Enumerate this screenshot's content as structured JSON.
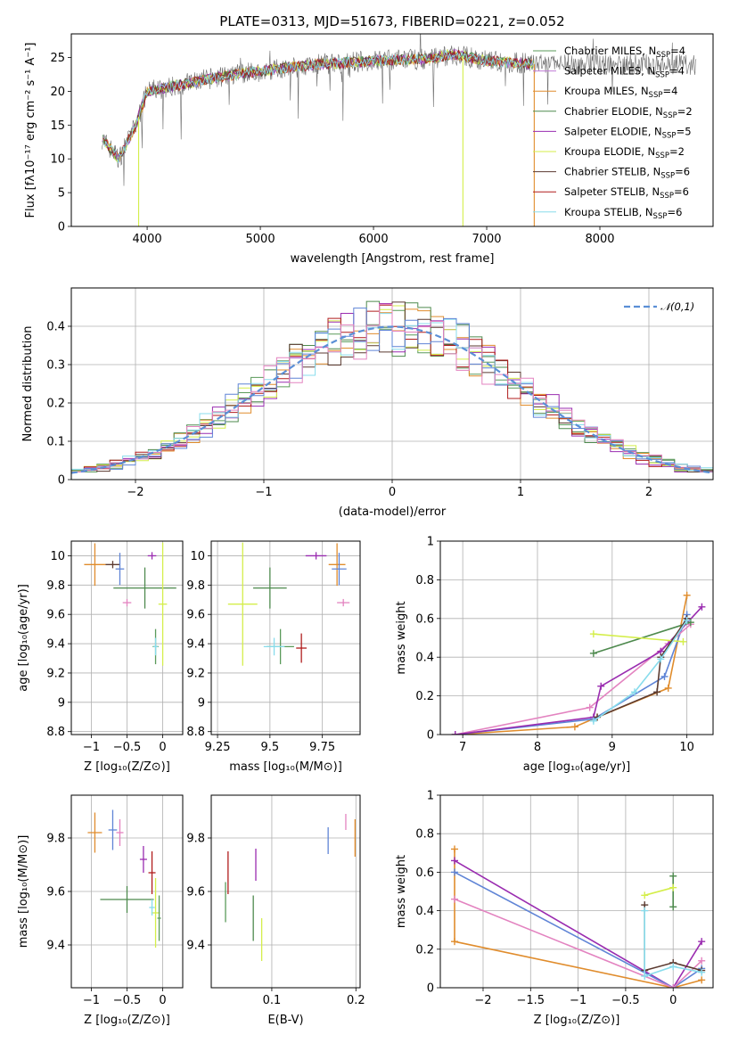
{
  "page": {
    "title": "PLATE=0313, MJD=51673, FIBERID=0221, z=0.052"
  },
  "colors": {
    "Chabrier MILES": "#5a9a5a",
    "Salpeter MILES": "#c07bd6",
    "Kroupa MILES": "#e08c2c",
    "Chabrier ELODIE": "#4e8a4e",
    "Salpeter ELODIE": "#9a2cb0",
    "Kroupa ELODIE": "#d4ee4a",
    "Chabrier STELIB": "#5b3a30",
    "Salpeter STELIB": "#b01c1c",
    "Kroupa STELIB": "#88dcec",
    "extra_blue": "#5f84d6",
    "extra_pink": "#e383c0",
    "normal": "#5b8fd6"
  },
  "chart_data": [
    {
      "type": "line",
      "xlabel": "wavelength [Angstrom, rest frame]",
      "ylabel": "Flux [fλ10⁻¹⁷ erg cm⁻² s⁻¹ A⁻¹]",
      "xlim": [
        3330,
        9000
      ],
      "ylim": [
        0,
        28.5
      ],
      "xticks": [
        4000,
        5000,
        6000,
        7000,
        8000
      ],
      "yticks": [
        0,
        5,
        10,
        15,
        20,
        25
      ],
      "legend_position": "right",
      "legend": [
        {
          "name": "Chabrier MILES",
          "nssp": "4"
        },
        {
          "name": "Salpeter MILES",
          "nssp": "4"
        },
        {
          "name": "Kroupa MILES",
          "nssp": "4"
        },
        {
          "name": "Chabrier ELODIE",
          "nssp": "2"
        },
        {
          "name": "Salpeter ELODIE",
          "nssp": "5"
        },
        {
          "name": "Kroupa ELODIE",
          "nssp": "2"
        },
        {
          "name": "Chabrier STELIB",
          "nssp": "6"
        },
        {
          "name": "Salpeter STELIB",
          "nssp": "6"
        },
        {
          "name": "Kroupa STELIB",
          "nssp": "6"
        }
      ],
      "continuum": {
        "x": [
          3600,
          3750,
          3900,
          4000,
          4300,
          4600,
          5000,
          5500,
          6000,
          6500,
          6700,
          7000,
          7400
        ],
        "y": [
          13,
          10,
          15,
          20,
          21,
          22,
          23,
          24,
          24.5,
          24.8,
          25.5,
          24.5,
          24
        ]
      },
      "spikes_down": [
        {
          "x": 3925,
          "y": 0
        },
        {
          "x": 6790,
          "y": 0
        },
        {
          "x": 7420,
          "y": 0
        }
      ]
    },
    {
      "type": "bar",
      "subtype": "step-histogram",
      "xlabel": "(data-model)/error",
      "ylabel": "Normed distribution",
      "xlim": [
        -2.5,
        2.5
      ],
      "ylim": [
        0,
        0.5
      ],
      "xticks": [
        -2,
        -1,
        0,
        1,
        2
      ],
      "yticks": [
        0.0,
        0.1,
        0.2,
        0.3,
        0.4
      ],
      "legend": "𝒩(0,1)",
      "reference_curve": {
        "mean": 0,
        "sigma": 1
      },
      "bin_width": 0.1
    },
    {
      "type": "scatter",
      "subtype": "error-crosses",
      "xlabel": "Z [log₁₀(Z/Z⊙)]",
      "ylabel": "age  [log₁₀(age/yr)]",
      "xlim": [
        -1.28,
        0.28
      ],
      "ylim": [
        8.78,
        10.1
      ],
      "xticks": [
        -1,
        -0.5,
        0
      ],
      "yticks": [
        8.8,
        9.0,
        9.2,
        9.4,
        9.6,
        9.8,
        10.0
      ],
      "points": [
        {
          "series": "Kroupa MILES",
          "x": -0.95,
          "y": 9.94,
          "dx": 0.3,
          "dy": 0.29
        },
        {
          "series": "Chabrier STELIB",
          "x": -0.7,
          "y": 9.94,
          "dx": 0.2,
          "dy": 0.05
        },
        {
          "series": "extra_blue",
          "x": -0.6,
          "y": 9.91,
          "dx": 0.12,
          "dy": 0.22
        },
        {
          "series": "extra_pink",
          "x": -0.5,
          "y": 9.68,
          "dx": 0.12,
          "dy": 0.05
        },
        {
          "series": "Salpeter ELODIE",
          "x": -0.15,
          "y": 10.0,
          "dx": 0.12,
          "dy": 0.05
        },
        {
          "series": "Chabrier ELODIE",
          "x": -0.25,
          "y": 9.78,
          "dx": 0.88,
          "dy": 0.28
        },
        {
          "series": "Kroupa ELODIE",
          "x": 0.0,
          "y": 9.67,
          "dx": 0.12,
          "dy": 0.84
        },
        {
          "series": "Chabrier MILES",
          "x": -0.1,
          "y": 9.38,
          "dx": 0.08,
          "dy": 0.24
        },
        {
          "series": "Kroupa STELIB",
          "x": -0.1,
          "y": 9.38,
          "dx": 0.06,
          "dy": 0.12
        }
      ]
    },
    {
      "type": "scatter",
      "subtype": "error-crosses",
      "xlabel": "mass [log₁₀(M/M⊙)]",
      "ylabel": "",
      "xlim": [
        9.22,
        9.93
      ],
      "ylim": [
        8.78,
        10.1
      ],
      "xticks": [
        9.25,
        9.5,
        9.75
      ],
      "yticks": [
        8.8,
        9.0,
        9.2,
        9.4,
        9.6,
        9.8,
        10.0
      ],
      "points": [
        {
          "series": "Salpeter ELODIE",
          "x": 9.72,
          "y": 10.0,
          "dx": 0.1,
          "dy": 0.05
        },
        {
          "series": "Kroupa MILES",
          "x": 9.82,
          "y": 9.94,
          "dx": 0.08,
          "dy": 0.29
        },
        {
          "series": "extra_blue",
          "x": 9.83,
          "y": 9.91,
          "dx": 0.07,
          "dy": 0.22
        },
        {
          "series": "extra_pink",
          "x": 9.85,
          "y": 9.68,
          "dx": 0.06,
          "dy": 0.05
        },
        {
          "series": "Chabrier ELODIE",
          "x": 9.5,
          "y": 9.78,
          "dx": 0.16,
          "dy": 0.28
        },
        {
          "series": "Kroupa ELODIE",
          "x": 9.37,
          "y": 9.67,
          "dx": 0.14,
          "dy": 0.84
        },
        {
          "series": "Salpeter STELIB",
          "x": 9.65,
          "y": 9.37,
          "dx": 0.05,
          "dy": 0.2
        },
        {
          "series": "Chabrier MILES",
          "x": 9.55,
          "y": 9.38,
          "dx": 0.13,
          "dy": 0.24
        },
        {
          "series": "Kroupa STELIB",
          "x": 9.52,
          "y": 9.38,
          "dx": 0.1,
          "dy": 0.12
        }
      ]
    },
    {
      "type": "line",
      "xlabel": "age  [log₁₀(age/yr)]",
      "ylabel": "mass weight",
      "xlim": [
        6.7,
        10.35
      ],
      "ylim": [
        0,
        1.0
      ],
      "xticks": [
        7,
        8,
        9,
        10
      ],
      "yticks": [
        0.0,
        0.2,
        0.4,
        0.6,
        0.8,
        1.0
      ],
      "series": [
        {
          "name": "Kroupa MILES",
          "x": [
            6.9,
            8.5,
            8.8,
            9.75,
            10.0
          ],
          "y": [
            0.0,
            0.04,
            0.09,
            0.24,
            0.72
          ]
        },
        {
          "name": "extra_blue",
          "x": [
            6.9,
            8.75,
            9.7,
            10.0
          ],
          "y": [
            0.0,
            0.08,
            0.3,
            0.62
          ]
        },
        {
          "name": "extra_pink",
          "x": [
            6.9,
            8.7,
            9.75,
            10.05
          ],
          "y": [
            0.0,
            0.14,
            0.47,
            0.57
          ]
        },
        {
          "name": "Salpeter ELODIE",
          "x": [
            6.9,
            8.75,
            8.85,
            9.65,
            10.2
          ],
          "y": [
            0.0,
            0.09,
            0.25,
            0.43,
            0.66
          ]
        },
        {
          "name": "Chabrier ELODIE",
          "x": [
            8.75,
            10.05
          ],
          "y": [
            0.42,
            0.58
          ]
        },
        {
          "name": "Kroupa ELODIE",
          "x": [
            8.75,
            9.95
          ],
          "y": [
            0.52,
            0.48
          ]
        },
        {
          "name": "Chabrier STELIB",
          "x": [
            8.8,
            9.6,
            9.65,
            10.0
          ],
          "y": [
            0.09,
            0.22,
            0.4,
            0.6
          ]
        },
        {
          "name": "Kroupa STELIB",
          "x": [
            8.75,
            9.3,
            9.65,
            10.0
          ],
          "y": [
            0.07,
            0.22,
            0.39,
            0.59
          ]
        }
      ]
    },
    {
      "type": "scatter",
      "subtype": "error-crosses",
      "xlabel": "Z [log₁₀(Z/Z⊙)]",
      "ylabel": "mass [log₁₀(M/M⊙)]",
      "xlim": [
        -1.28,
        0.28
      ],
      "ylim": [
        9.24,
        9.96
      ],
      "xticks": [
        -1,
        -0.5,
        0
      ],
      "yticks": [
        9.4,
        9.6,
        9.8
      ],
      "points": [
        {
          "series": "Kroupa MILES",
          "x": -0.95,
          "y": 9.82,
          "dx": 0.2,
          "dy": 0.15
        },
        {
          "series": "extra_blue",
          "x": -0.7,
          "y": 9.83,
          "dx": 0.12,
          "dy": 0.15
        },
        {
          "series": "extra_pink",
          "x": -0.6,
          "y": 9.82,
          "dx": 0.1,
          "dy": 0.1
        },
        {
          "series": "Salpeter ELODIE",
          "x": -0.27,
          "y": 9.72,
          "dx": 0.1,
          "dy": 0.1
        },
        {
          "series": "Salpeter STELIB",
          "x": -0.15,
          "y": 9.67,
          "dx": 0.1,
          "dy": 0.16
        },
        {
          "series": "Chabrier ELODIE",
          "x": -0.5,
          "y": 9.57,
          "dx": 0.75,
          "dy": 0.1
        },
        {
          "series": "Kroupa ELODIE",
          "x": -0.1,
          "y": 9.52,
          "dx": 0.12,
          "dy": 0.26
        },
        {
          "series": "Kroupa STELIB",
          "x": -0.15,
          "y": 9.54,
          "dx": 0.08,
          "dy": 0.06
        },
        {
          "series": "Chabrier MILES",
          "x": -0.05,
          "y": 9.5,
          "dx": 0.05,
          "dy": 0.17
        }
      ]
    },
    {
      "type": "scatter",
      "subtype": "error-bars",
      "xlabel": "E(B-V)",
      "ylabel": "",
      "xlim": [
        0.028,
        0.205
      ],
      "ylim": [
        9.24,
        9.96
      ],
      "xticks": [
        0.1,
        0.2
      ],
      "yticks": [
        9.4,
        9.6,
        9.8
      ],
      "points": [
        {
          "series": "Chabrier MILES",
          "x": 0.045,
          "y": 9.56,
          "dy": 0.15
        },
        {
          "series": "Salpeter STELIB",
          "x": 0.048,
          "y": 9.67,
          "dy": 0.16
        },
        {
          "series": "Chabrier ELODIE",
          "x": 0.078,
          "y": 9.5,
          "dy": 0.17
        },
        {
          "series": "Salpeter ELODIE",
          "x": 0.081,
          "y": 9.7,
          "dy": 0.12
        },
        {
          "series": "Kroupa ELODIE",
          "x": 0.088,
          "y": 9.42,
          "dy": 0.16
        },
        {
          "series": "extra_blue",
          "x": 0.167,
          "y": 9.79,
          "dy": 0.1
        },
        {
          "series": "extra_pink",
          "x": 0.188,
          "y": 9.86,
          "dy": 0.06
        },
        {
          "series": "Kroupa MILES",
          "x": 0.199,
          "y": 9.8,
          "dy": 0.14
        }
      ]
    },
    {
      "type": "line",
      "xlabel": "Z [log₁₀(Z/Z⊙)]",
      "ylabel": "mass weight",
      "xlim": [
        -2.45,
        0.42
      ],
      "ylim": [
        0,
        1.0
      ],
      "xticks": [
        -2.0,
        -1.5,
        -1.0,
        -0.5,
        0.0
      ],
      "yticks": [
        0.0,
        0.2,
        0.4,
        0.6,
        0.8,
        1.0
      ],
      "series": [
        {
          "name": "Kroupa MILES",
          "x": [
            -2.3,
            -2.3,
            0.0,
            0.3
          ],
          "y": [
            0.72,
            0.24,
            0.0,
            0.04
          ]
        },
        {
          "name": "Salpeter ELODIE",
          "x": [
            -2.3,
            0.0,
            0.3
          ],
          "y": [
            0.66,
            0.0,
            0.24
          ]
        },
        {
          "name": "extra_blue",
          "x": [
            -2.3,
            0.0,
            0.3
          ],
          "y": [
            0.6,
            0.0,
            0.1
          ]
        },
        {
          "name": "extra_pink",
          "x": [
            -2.3,
            0.0,
            0.3
          ],
          "y": [
            0.46,
            0.0,
            0.14
          ]
        },
        {
          "name": "Chabrier ELODIE",
          "x": [
            0.0,
            0.0
          ],
          "y": [
            0.58,
            0.42
          ]
        },
        {
          "name": "Kroupa ELODIE",
          "x": [
            -0.3,
            0.0
          ],
          "y": [
            0.48,
            0.52
          ]
        },
        {
          "name": "Chabrier STELIB",
          "x": [
            -0.3,
            -0.3,
            0.0,
            0.3
          ],
          "y": [
            0.43,
            0.09,
            0.13,
            0.09
          ]
        },
        {
          "name": "Kroupa STELIB",
          "x": [
            -0.3,
            -0.3,
            0.0,
            0.3
          ],
          "y": [
            0.4,
            0.06,
            0.11,
            0.08
          ]
        }
      ]
    }
  ]
}
